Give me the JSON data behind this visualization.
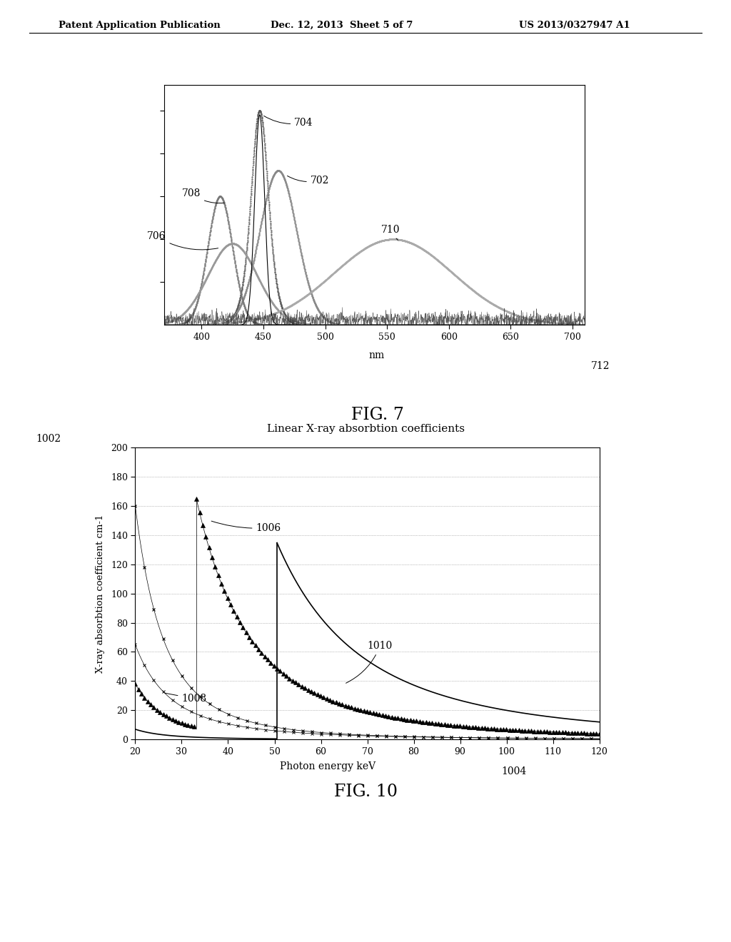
{
  "header_left": "Patent Application Publication",
  "header_mid": "Dec. 12, 2013  Sheet 5 of 7",
  "header_right": "US 2013/0327947 A1",
  "fig7_xlabel": "nm",
  "fig7_xlabel_label": "712",
  "fig7_xlim": [
    370,
    710
  ],
  "fig7_xticks": [
    400,
    450,
    500,
    550,
    600,
    650,
    700
  ],
  "fig7_title": "FIG. 7",
  "fig10_title": "Linear X-ray absorbtion coefficients",
  "fig10_ylabel": "X-ray absorbtion coefficient cm-1",
  "fig10_xlabel": "Photon energy keV",
  "fig10_xlabel_label": "1004",
  "fig10_ylabel_label": "1002",
  "fig10_xlim": [
    20,
    120
  ],
  "fig10_ylim": [
    0,
    200
  ],
  "fig10_xticks": [
    20,
    30,
    40,
    50,
    60,
    70,
    80,
    90,
    100,
    110,
    120
  ],
  "fig10_yticks": [
    0,
    20,
    40,
    60,
    80,
    100,
    120,
    140,
    160,
    180,
    200
  ],
  "fig10_fig_title": "FIG. 10",
  "background_color": "#ffffff"
}
